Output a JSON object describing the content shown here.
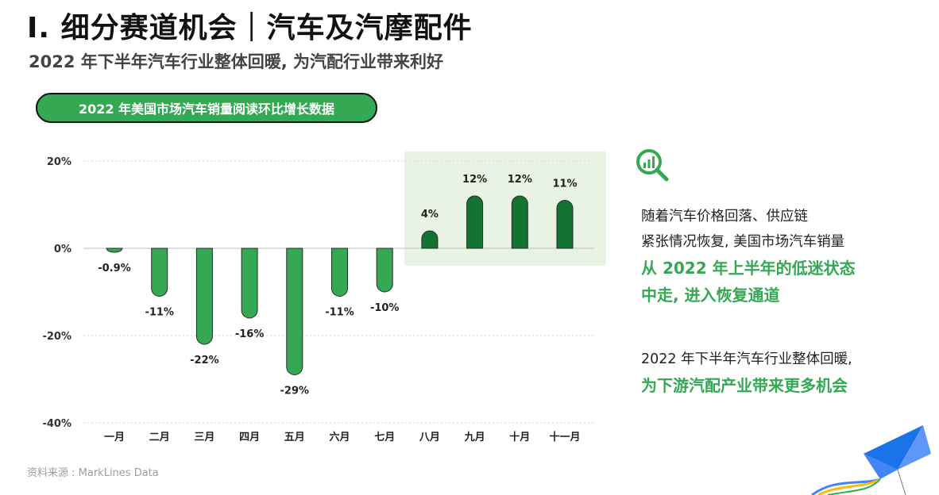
{
  "title": "I.  细分赛道机会｜汽车及汽摩配件",
  "subtitle": "2022 年下半年汽车行业整体回暖, 为汽配行业带来利好",
  "chart_title": "2022 年美国市场汽车销量阅读环比增长数据",
  "chart_data": {
    "type": "bar",
    "title": "2022 年美国市场汽车销量阅读环比增长数据",
    "categories": [
      "一月",
      "二月",
      "三月",
      "四月",
      "五月",
      "六月",
      "七月",
      "八月",
      "九月",
      "十月",
      "十一月"
    ],
    "values": [
      -0.9,
      -11,
      -22,
      -16,
      -29,
      -11,
      -10,
      4,
      12,
      12,
      11
    ],
    "value_labels": [
      "-0.9%",
      "-11%",
      "-22%",
      "-16%",
      "-29%",
      "-11%",
      "-10%",
      "4%",
      "12%",
      "12%",
      "11%"
    ],
    "y_ticks": [
      "20%",
      "0%",
      "-20%",
      "-40%"
    ],
    "y_tick_values": [
      20,
      0,
      -20,
      -40
    ],
    "ylim": [
      -40,
      20
    ],
    "grid": true,
    "highlight_categories": [
      "八月",
      "九月",
      "十月",
      "十一月"
    ],
    "colors": {
      "negative": "#34a853",
      "positive": "#137333",
      "highlight_bg": "#e8f3e4"
    }
  },
  "side": {
    "icon": "magnifier-chart-icon",
    "para1_plain": [
      "随着汽车价格回落、供应链",
      "紧张情况恢复, 美国市场汽车销量"
    ],
    "para1_hl": [
      "从 2022 年上半年的低迷状态",
      "中走, 进入恢复通道"
    ],
    "para2_plain": [
      "2022 年下半年汽车行业整体回暖,"
    ],
    "para2_hl": [
      "为下游汽配产业带来更多机会"
    ]
  },
  "source": "资料来源 : MarkLines Data",
  "colors": {
    "accent": "#34a853",
    "dark_green": "#137333"
  }
}
